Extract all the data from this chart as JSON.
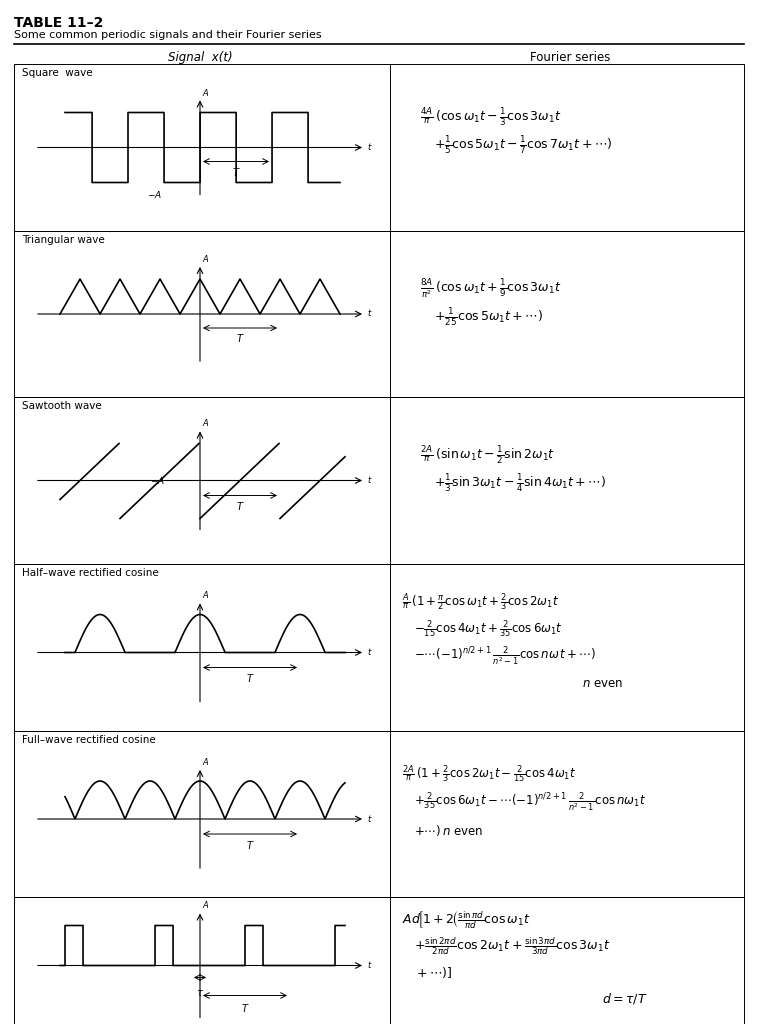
{
  "title": "TABLE 11–2",
  "subtitle": "Some common periodic signals and their Fourier series",
  "col1_header": "Signal  x(t)",
  "col2_header": "Fourier series",
  "rows": [
    {
      "label": "Square wave",
      "formula_lines": [
        "$\\frac{4A}{\\pi}\\,\\left(\\cos\\omega_1 t - \\frac{1}{3}\\cos 3\\omega_1 t\\right.$",
        "$\\left.+ \\frac{1}{5}\\cos 5\\omega_1 t - \\frac{1}{7}\\cos 7\\omega_1 t + \\cdots\\right)$"
      ]
    },
    {
      "label": "Triangular wave",
      "formula_lines": [
        "$\\frac{8A}{\\pi^2}\\,\\left(\\cos\\omega_1 t + \\frac{1}{9}\\cos 3\\omega_1 t\\right.$",
        "$\\left.+ \\frac{1}{25}\\cos 5\\omega_1 t + \\cdots\\right)$"
      ]
    },
    {
      "label": "Sawtooth wave",
      "formula_lines": [
        "$\\frac{2A}{\\pi}\\,\\left(\\sin\\omega_1 t - \\frac{1}{2}\\sin 2\\omega_1 t\\right.$",
        "$\\left.+ \\frac{1}{3}\\sin 3\\omega_1 t - \\frac{1}{4}\\sin 4\\omega_1 t + \\cdots\\right)$"
      ]
    },
    {
      "label": "Half–wave rectified cosine",
      "formula_lines": [
        "$\\frac{A}{\\pi}\\,\\left(1 + \\frac{\\pi}{2}\\cos\\omega_1 t + \\frac{2}{3}\\cos 2\\omega_1 t\\right.$",
        "$- \\frac{2}{15}\\cos 4\\omega_1 t + \\frac{2}{35}\\cos 6\\omega_1 t$",
        "$- \\cdots(-1)^{n/2+1}\\,\\dfrac{2}{n^2-1}\\cos n\\omega\\, t + \\cdots\\right)$",
        "$n \\text{ even}$"
      ]
    },
    {
      "label": "Full–wave rectified cosine",
      "formula_lines": [
        "$\\frac{2A}{\\pi}\\,\\left(1 + \\frac{2}{3}\\cos 2\\omega_1 t - \\frac{2}{15}\\cos 4\\omega_1 t\\right.$",
        "$+ \\frac{2}{35}\\cos 6\\omega_1 t - \\cdots(-1)^{n/2+1}\\,\\dfrac{2}{n^2-1}\\cos n\\omega_1 t$",
        "$\\left.+ \\cdots\\right) n \\text{ even}$"
      ]
    },
    {
      "label": "",
      "formula_lines": [
        "$Ad\\!\\left[1 + 2\\!\\left(\\frac{\\sin\\pi d}{\\pi d}\\cos\\omega_1 t\\right.\\right.$",
        "$+ \\frac{\\sin 2\\pi d}{2\\pi d}\\cos 2\\omega_1 t + \\frac{\\sin 3\\pi d}{3\\pi d}\\cos 3\\omega_1 t$",
        "$\\left.\\left. + \\cdots\\right)\\right]$",
        "$d = \\tau/T$"
      ]
    }
  ],
  "bg_color": "#ffffff",
  "border_color": "#000000",
  "text_color": "#000000"
}
